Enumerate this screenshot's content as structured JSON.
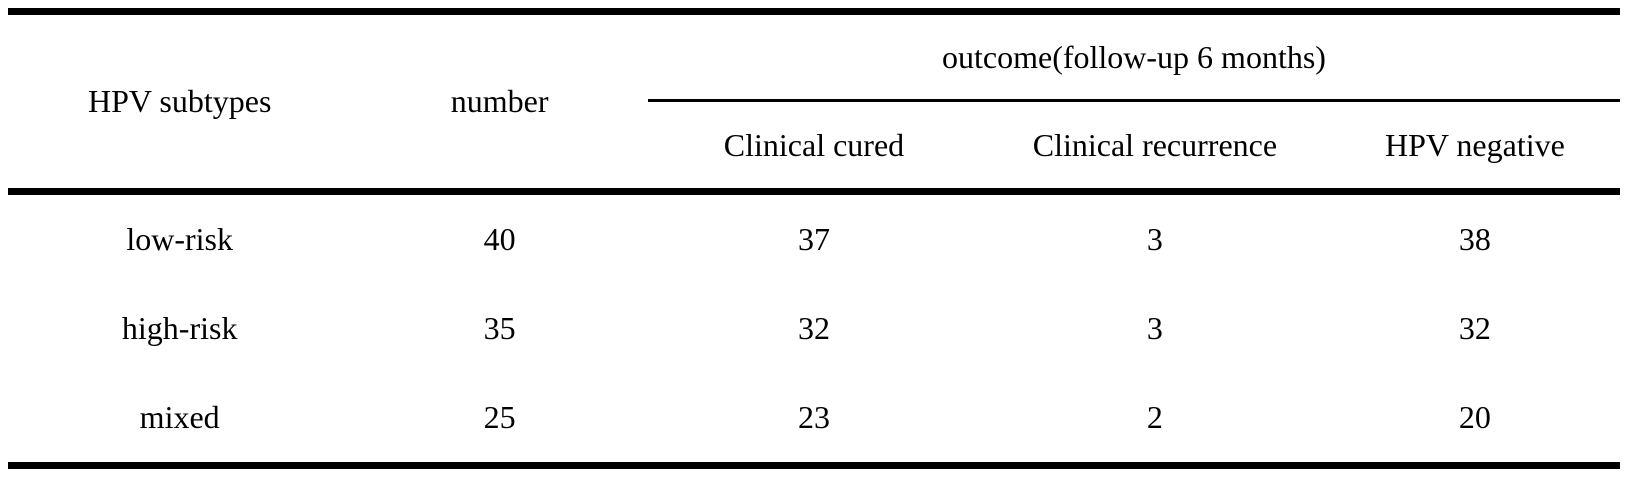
{
  "page": {
    "background_color": "#ffffff",
    "text_color": "#000000",
    "rule_color": "#000000"
  },
  "table": {
    "header": {
      "hpv_subtypes": "HPV subtypes",
      "number": "number",
      "outcome_group": "outcome(follow-up 6 months)",
      "clinical_cured": "Clinical cured",
      "clinical_recurrence": "Clinical recurrence",
      "hpv_negative": "HPV negative"
    },
    "rows": [
      [
        "low-risk",
        "40",
        "37",
        "3",
        "38"
      ],
      [
        "high-risk",
        "35",
        "32",
        "3",
        "32"
      ],
      [
        "mixed",
        "25",
        "23",
        "2",
        "20"
      ]
    ]
  },
  "chart_data": {
    "type": "table",
    "title": "",
    "columns": [
      "HPV subtypes",
      "number",
      "Clinical cured",
      "Clinical recurrence",
      "HPV negative"
    ],
    "column_group": {
      "label": "outcome(follow-up 6 months)",
      "spans": [
        "Clinical cured",
        "Clinical recurrence",
        "HPV negative"
      ]
    },
    "rows": [
      {
        "HPV subtypes": "low-risk",
        "number": 40,
        "Clinical cured": 37,
        "Clinical recurrence": 3,
        "HPV negative": 38
      },
      {
        "HPV subtypes": "high-risk",
        "number": 35,
        "Clinical cured": 32,
        "Clinical recurrence": 3,
        "HPV negative": 32
      },
      {
        "HPV subtypes": "mixed",
        "number": 25,
        "Clinical cured": 23,
        "Clinical recurrence": 2,
        "HPV negative": 20
      }
    ]
  }
}
